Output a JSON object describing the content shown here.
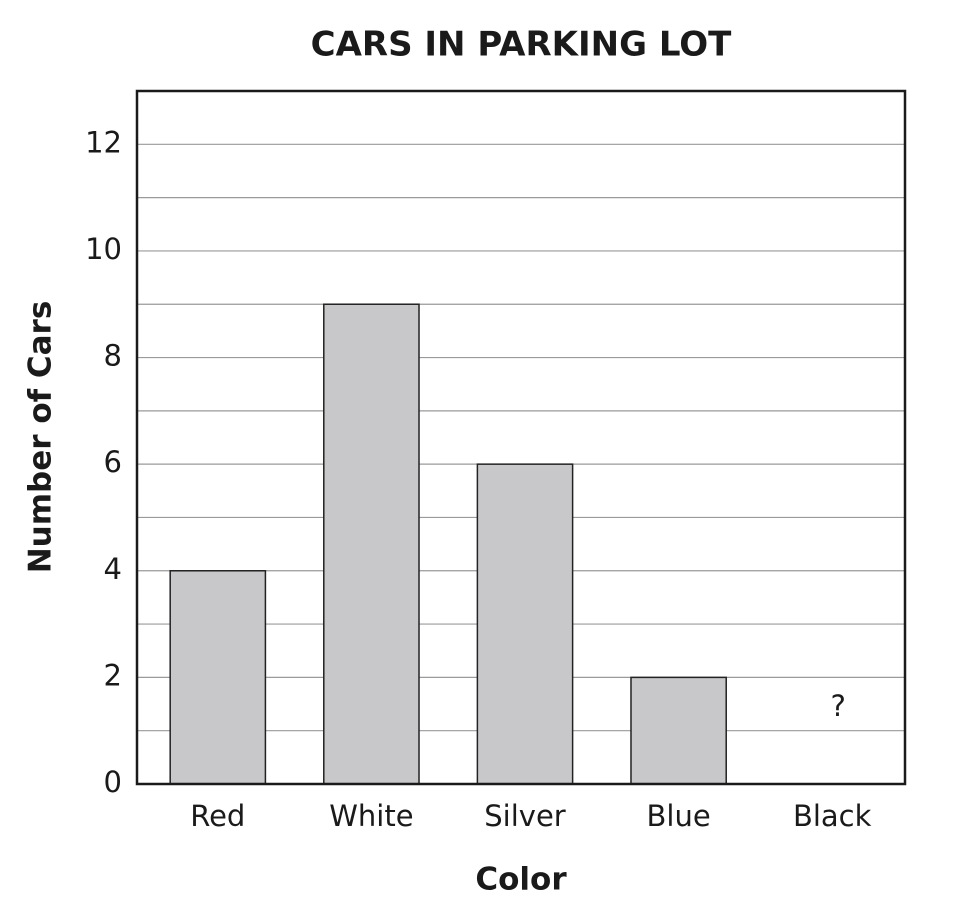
{
  "chart_data": {
    "type": "bar",
    "title": "CARS IN PARKING LOT",
    "x_label": "Color",
    "y_label": "Number of Cars",
    "categories": [
      "Red",
      "White",
      "Silver",
      "Blue",
      "Black"
    ],
    "values": [
      4,
      9,
      6,
      2,
      null
    ],
    "annotation": "?",
    "color": "#c8c8ca",
    "ylim": [
      0,
      13
    ],
    "yticks": [
      0,
      2,
      4,
      6,
      8,
      10,
      12
    ],
    "minor_yticks": [
      1,
      3,
      5,
      7,
      9,
      11
    ],
    "grid": true
  }
}
